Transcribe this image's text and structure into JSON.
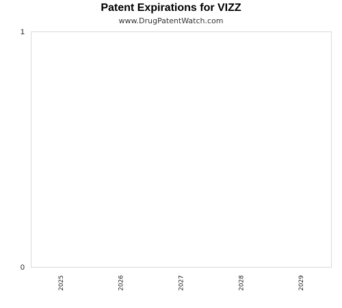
{
  "chart_data": {
    "type": "bar",
    "title": "Patent Expirations for VIZZ",
    "subtitle": "www.DrugPatentWatch.com",
    "categories": [
      "2025",
      "2026",
      "2027",
      "2028",
      "2029"
    ],
    "values": [
      0,
      0,
      0,
      0,
      0
    ],
    "xlabel": "",
    "ylabel": "",
    "ylim": [
      0,
      1
    ],
    "y_ticks": [
      "0",
      "1"
    ],
    "grid": false,
    "legend": "none",
    "colors": {
      "plot_border": "#d9d9d9",
      "bar": "#4a7ebb"
    }
  }
}
